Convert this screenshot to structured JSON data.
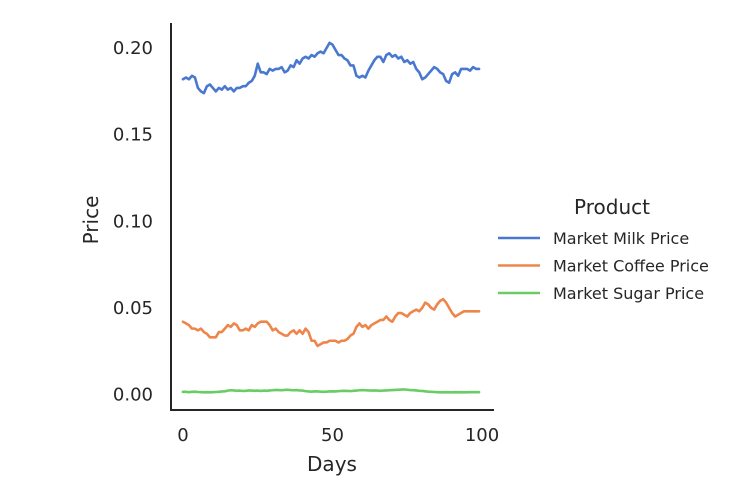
{
  "chart_data": {
    "type": "line",
    "title": "",
    "xlabel": "Days",
    "ylabel": "Price",
    "xlim": [
      -4,
      104
    ],
    "ylim": [
      -0.009,
      0.2145
    ],
    "x_ticks": [
      0,
      50,
      100
    ],
    "x_tick_labels": [
      "0",
      "50",
      "100"
    ],
    "y_ticks": [
      0.0,
      0.05,
      0.1,
      0.15,
      0.2
    ],
    "y_tick_labels": [
      "0.00",
      "0.05",
      "0.10",
      "0.15",
      "0.20"
    ],
    "grid": false,
    "legend": {
      "title": "Product",
      "placement": "right-outside"
    },
    "x": [
      0,
      1,
      2,
      3,
      4,
      5,
      6,
      7,
      8,
      9,
      10,
      11,
      12,
      13,
      14,
      15,
      16,
      17,
      18,
      19,
      20,
      21,
      22,
      23,
      24,
      25,
      26,
      27,
      28,
      29,
      30,
      31,
      32,
      33,
      34,
      35,
      36,
      37,
      38,
      39,
      40,
      41,
      42,
      43,
      44,
      45,
      46,
      47,
      48,
      49,
      50,
      51,
      52,
      53,
      54,
      55,
      56,
      57,
      58,
      59,
      60,
      61,
      62,
      63,
      64,
      65,
      66,
      67,
      68,
      69,
      70,
      71,
      72,
      73,
      74,
      75,
      76,
      77,
      78,
      79,
      80,
      81,
      82,
      83,
      84,
      85,
      86,
      87,
      88,
      89,
      90,
      91,
      92,
      93,
      94,
      95,
      96,
      97,
      98,
      99
    ],
    "series": [
      {
        "name": "Market Milk Price",
        "color": "#4878d0",
        "values": [
          0.182,
          0.183,
          0.182,
          0.184,
          0.183,
          0.177,
          0.175,
          0.174,
          0.178,
          0.179,
          0.177,
          0.175,
          0.177,
          0.176,
          0.178,
          0.176,
          0.177,
          0.175,
          0.177,
          0.177,
          0.178,
          0.178,
          0.18,
          0.181,
          0.184,
          0.191,
          0.186,
          0.186,
          0.185,
          0.188,
          0.187,
          0.188,
          0.188,
          0.189,
          0.186,
          0.187,
          0.19,
          0.189,
          0.193,
          0.191,
          0.194,
          0.195,
          0.194,
          0.196,
          0.195,
          0.197,
          0.198,
          0.197,
          0.2,
          0.203,
          0.202,
          0.199,
          0.196,
          0.196,
          0.194,
          0.193,
          0.19,
          0.19,
          0.184,
          0.183,
          0.184,
          0.183,
          0.187,
          0.19,
          0.193,
          0.195,
          0.195,
          0.192,
          0.196,
          0.197,
          0.195,
          0.196,
          0.194,
          0.195,
          0.192,
          0.193,
          0.191,
          0.192,
          0.188,
          0.186,
          0.182,
          0.183,
          0.185,
          0.187,
          0.189,
          0.188,
          0.186,
          0.185,
          0.181,
          0.18,
          0.185,
          0.186,
          0.184,
          0.188,
          0.188,
          0.188,
          0.187,
          0.189,
          0.188,
          0.188
        ]
      },
      {
        "name": "Market Coffee Price",
        "color": "#ee854a",
        "values": [
          0.042,
          0.041,
          0.04,
          0.038,
          0.038,
          0.037,
          0.038,
          0.036,
          0.035,
          0.033,
          0.033,
          0.033,
          0.036,
          0.036,
          0.038,
          0.04,
          0.039,
          0.041,
          0.04,
          0.037,
          0.037,
          0.038,
          0.037,
          0.04,
          0.039,
          0.041,
          0.042,
          0.042,
          0.042,
          0.04,
          0.037,
          0.038,
          0.036,
          0.035,
          0.034,
          0.034,
          0.036,
          0.037,
          0.035,
          0.037,
          0.035,
          0.038,
          0.036,
          0.031,
          0.031,
          0.028,
          0.029,
          0.03,
          0.03,
          0.031,
          0.031,
          0.031,
          0.03,
          0.031,
          0.031,
          0.032,
          0.034,
          0.035,
          0.039,
          0.041,
          0.039,
          0.04,
          0.038,
          0.04,
          0.041,
          0.042,
          0.043,
          0.043,
          0.045,
          0.043,
          0.042,
          0.045,
          0.047,
          0.047,
          0.046,
          0.045,
          0.047,
          0.048,
          0.049,
          0.048,
          0.05,
          0.053,
          0.052,
          0.05,
          0.049,
          0.052,
          0.054,
          0.055,
          0.053,
          0.05,
          0.047,
          0.045,
          0.046,
          0.047,
          0.048,
          0.048,
          0.048,
          0.048,
          0.048,
          0.048
        ]
      },
      {
        "name": "Market Sugar Price",
        "color": "#6acc64",
        "values": [
          0.0015,
          0.0015,
          0.0013,
          0.0015,
          0.0016,
          0.0014,
          0.0013,
          0.0012,
          0.0013,
          0.0012,
          0.0013,
          0.0014,
          0.0015,
          0.0017,
          0.0018,
          0.0022,
          0.0024,
          0.0023,
          0.0021,
          0.0022,
          0.002,
          0.0021,
          0.0023,
          0.0022,
          0.0021,
          0.0022,
          0.002,
          0.0022,
          0.0021,
          0.0023,
          0.0024,
          0.0026,
          0.0025,
          0.0024,
          0.0026,
          0.0027,
          0.0025,
          0.0024,
          0.0025,
          0.0023,
          0.0022,
          0.0019,
          0.0017,
          0.0016,
          0.0018,
          0.0017,
          0.0016,
          0.0015,
          0.0016,
          0.0017,
          0.0018,
          0.0017,
          0.0019,
          0.002,
          0.0021,
          0.002,
          0.0019,
          0.0021,
          0.0022,
          0.0024,
          0.0025,
          0.0024,
          0.0023,
          0.0022,
          0.0023,
          0.0022,
          0.0021,
          0.0022,
          0.0023,
          0.0024,
          0.0025,
          0.0026,
          0.0027,
          0.0028,
          0.0029,
          0.0027,
          0.0025,
          0.0024,
          0.0023,
          0.0021,
          0.002,
          0.0018,
          0.0016,
          0.0015,
          0.0014,
          0.0013,
          0.0012,
          0.0012,
          0.0013,
          0.0012,
          0.0012,
          0.0013,
          0.0012,
          0.0013,
          0.0012,
          0.0012,
          0.0013,
          0.0013,
          0.0013,
          0.0013
        ]
      }
    ]
  }
}
